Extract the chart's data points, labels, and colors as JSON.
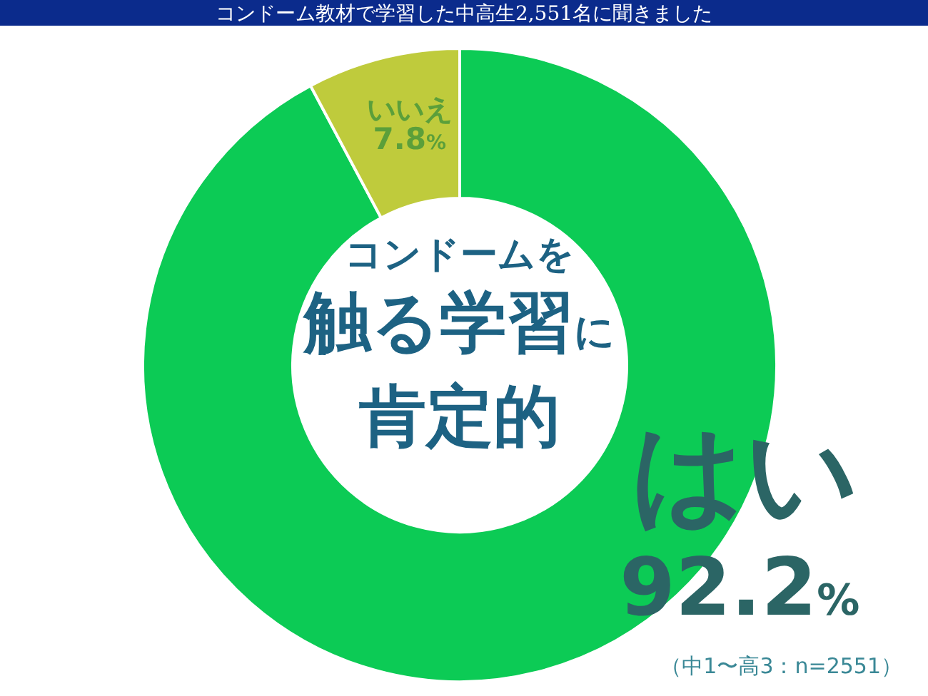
{
  "chart_data": {
    "type": "donut",
    "title": "コンドーム教材で学習した中高生2,551名に聞きました",
    "categories": [
      "はい",
      "いいえ"
    ],
    "values": [
      92.2,
      7.8
    ],
    "colors": [
      "#0ccb55",
      "#bfcb3c"
    ],
    "value_labels": [
      "92.2%",
      "7.8%"
    ],
    "annotations": [
      "コンドームを触る学習に肯定的",
      "（中1〜高3：n=2551）"
    ]
  }
}
